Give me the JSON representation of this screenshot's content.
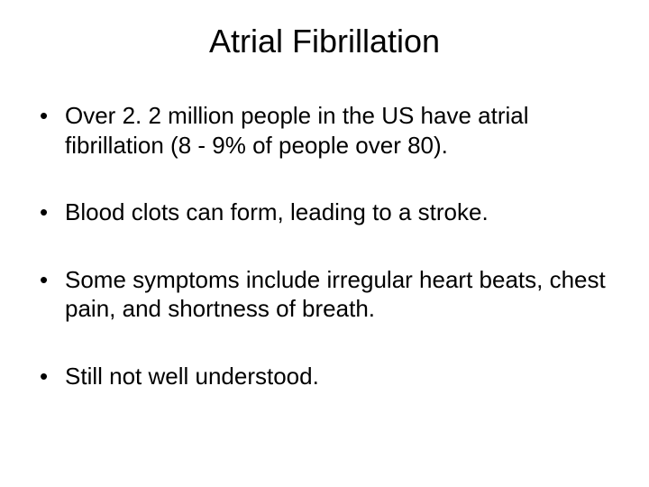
{
  "slide": {
    "title": "Atrial Fibrillation",
    "title_fontsize": 36,
    "body_fontsize": 26,
    "background_color": "#ffffff",
    "text_color": "#000000",
    "font_family": "Arial",
    "bullets": [
      "Over 2. 2 million people in the US have atrial fibrillation (8 - 9% of people over 80).",
      "Blood clots can form, leading to a stroke.",
      "Some symptoms include irregular heart beats, chest pain, and shortness of breath.",
      "Still not well understood."
    ]
  }
}
